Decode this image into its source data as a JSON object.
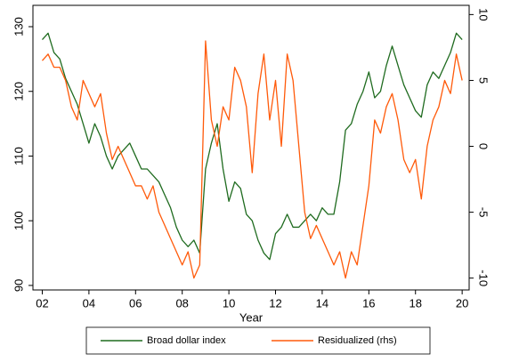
{
  "chart_data": {
    "type": "line",
    "x_label": "Year",
    "x": [
      2002,
      2002.25,
      2002.5,
      2002.75,
      2003,
      2003.25,
      2003.5,
      2003.75,
      2004,
      2004.25,
      2004.5,
      2004.75,
      2005,
      2005.25,
      2005.5,
      2005.75,
      2006,
      2006.25,
      2006.5,
      2006.75,
      2007,
      2007.25,
      2007.5,
      2007.75,
      2008,
      2008.25,
      2008.5,
      2008.75,
      2009,
      2009.25,
      2009.5,
      2009.75,
      2010,
      2010.25,
      2010.5,
      2010.75,
      2011,
      2011.25,
      2011.5,
      2011.75,
      2012,
      2012.25,
      2012.5,
      2012.75,
      2013,
      2013.25,
      2013.5,
      2013.75,
      2014,
      2014.25,
      2014.5,
      2014.75,
      2015,
      2015.25,
      2015.5,
      2015.75,
      2016,
      2016.25,
      2016.5,
      2016.75,
      2017,
      2017.25,
      2017.5,
      2017.75,
      2018,
      2018.25,
      2018.5,
      2018.75,
      2019,
      2019.25,
      2019.5,
      2019.75,
      2020
    ],
    "series": [
      {
        "name": "Broad dollar index",
        "color": "#1f6b1f",
        "axis": "y",
        "values": [
          128,
          129,
          126,
          125,
          122,
          120,
          118,
          115,
          112,
          115,
          113,
          110,
          108,
          110,
          111,
          112,
          110,
          108,
          108,
          107,
          106,
          104,
          102,
          99,
          97,
          96,
          97,
          95,
          108,
          112,
          115,
          108,
          103,
          106,
          105,
          101,
          100,
          97,
          95,
          94,
          98,
          99,
          101,
          99,
          99,
          100,
          101,
          100,
          102,
          101,
          101,
          106,
          114,
          115,
          118,
          120,
          123,
          119,
          120,
          124,
          127,
          124,
          121,
          119,
          117,
          116,
          121,
          123,
          122,
          124,
          126,
          129,
          128
        ]
      },
      {
        "name": "Residualized (rhs)",
        "color": "#ff5a0a",
        "axis": "y2",
        "values": [
          6.5,
          7,
          6,
          6,
          5,
          3,
          2,
          5,
          4,
          3,
          4,
          1,
          -1,
          0,
          -1,
          -2,
          -3,
          -3,
          -4,
          -3,
          -5,
          -6,
          -7,
          -8,
          -9,
          -8,
          -10,
          -9,
          8,
          2,
          0,
          3,
          2,
          6,
          5,
          3,
          -2,
          4,
          7,
          2,
          5,
          0,
          7,
          5,
          0,
          -5,
          -7,
          -6,
          -7,
          -8,
          -9,
          -8,
          -10,
          -8,
          -9,
          -6,
          -3,
          2,
          1,
          3,
          4,
          2,
          -1,
          -2,
          -1,
          -4,
          0,
          2,
          3,
          5,
          4,
          7,
          5
        ]
      }
    ],
    "xlim": [
      2001.6,
      2020.3
    ],
    "xticks": [
      {
        "value": 2002,
        "label": "02"
      },
      {
        "value": 2004,
        "label": "04"
      },
      {
        "value": 2006,
        "label": "06"
      },
      {
        "value": 2008,
        "label": "08"
      },
      {
        "value": 2010,
        "label": "10"
      },
      {
        "value": 2012,
        "label": "12"
      },
      {
        "value": 2014,
        "label": "14"
      },
      {
        "value": 2016,
        "label": "16"
      },
      {
        "value": 2018,
        "label": "18"
      },
      {
        "value": 2020,
        "label": "20"
      }
    ],
    "ylim": [
      89.3,
      133.3
    ],
    "yticks": [
      90,
      100,
      110,
      120,
      130
    ],
    "y2lim": [
      -10.9,
      10.7
    ],
    "y2ticks": [
      -10,
      -5,
      0,
      5,
      10
    ],
    "legend": "bottom"
  }
}
